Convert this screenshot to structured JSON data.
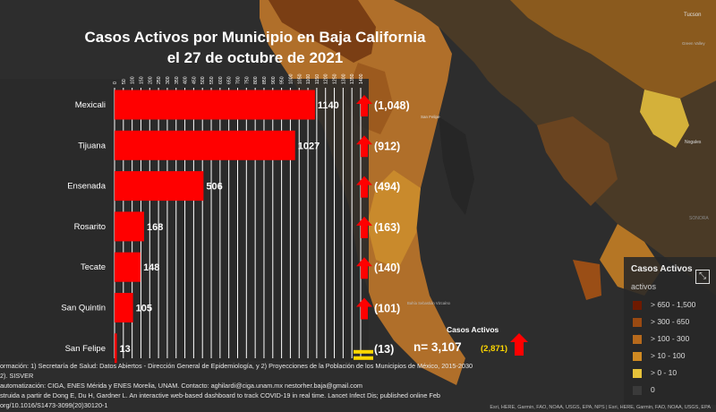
{
  "chart_data": {
    "type": "bar",
    "orientation": "horizontal",
    "title": "Casos Activos por Municipio en Baja California",
    "subtitle": "el 27 de octubre de 2021",
    "categories": [
      "Mexicali",
      "Tijuana",
      "Ensenada",
      "Rosarito",
      "Tecate",
      "San Quintin",
      "San Felipe"
    ],
    "values": [
      1140,
      1027,
      506,
      168,
      148,
      105,
      13
    ],
    "previous": [
      "(1,048)",
      "(912)",
      "(494)",
      "(163)",
      "(140)",
      "(101)",
      "(13)"
    ],
    "trend": [
      "up",
      "up",
      "up",
      "up",
      "up",
      "up",
      "equal"
    ],
    "xlim": [
      0,
      1400
    ],
    "x_ticks": [
      0,
      50,
      100,
      150,
      200,
      250,
      300,
      350,
      400,
      450,
      500,
      550,
      600,
      650,
      700,
      750,
      800,
      850,
      900,
      950,
      1000,
      1050,
      1100,
      1150,
      1200,
      1250,
      1300,
      1350,
      1400
    ],
    "x_tick_labels": [
      "0",
      "50",
      "100",
      "150",
      "200",
      "250",
      "300",
      "350",
      "400",
      "450",
      "500",
      "550",
      "600",
      "650",
      "700",
      "750",
      "800",
      "850",
      "900",
      "950",
      "1000",
      "1050",
      "1100",
      "1150",
      "1200",
      "1250",
      "1300",
      "1350",
      "1400"
    ],
    "grid": true,
    "bar_color": "#ff0000",
    "arrow_color": "#ff0000",
    "equal_color": "#ffd700"
  },
  "total": {
    "label": "Casos Activos",
    "value_text": "n= 3,107",
    "previous_text": "(2,871)",
    "trend": "up",
    "previous_color": "#ffd700"
  },
  "legend": {
    "title": "Casos Activos",
    "subtitle": "activos",
    "items": [
      {
        "label": "> 650 - 1,500",
        "color": "#6e1a00"
      },
      {
        "label": "> 300 - 650",
        "color": "#9a4a12"
      },
      {
        "label": "> 100 - 300",
        "color": "#b76a1c"
      },
      {
        "label": "> 10 - 100",
        "color": "#d08a22"
      },
      {
        "label": "> 0 - 10",
        "color": "#e6c23a"
      },
      {
        "label": "0",
        "color": "#3a3a3a"
      }
    ]
  },
  "map_labels": {
    "city1": "Tucson",
    "city2": "Green Valley",
    "city3": "Nogales",
    "city4": "San Felipe",
    "region": "SONORA",
    "bay": "Bahía Sebastián Vizcaíno"
  },
  "footer": {
    "line1": "ormación: 1) Secretaría de Salud: Datos Abiertos - Dirección General de Epidemiología, y 2) Proyecciones de la Población de los Municipios de México, 2015-2030",
    "line2": "2). SISVER",
    "line3": "automatización: CIGA, ENES Mérida y ENES Morelia, UNAM. Contacto: aghilardi@ciga.unam.mx   nestorher.baja@gmail.com",
    "line4": "struida a partir de Dong E, Du H, Gardner L. An interactive web-based dashboard to track COVID-19 in real time. Lancet Infect Dis; published online Feb",
    "line5": "org/10.1016/S1473-3099(20)30120-1",
    "attribution": "Esri, HERE, Garmin, FAO, NOAA, USGS, EPA, NPS | Esri, HERE, Garmin, FAO, NOAA, USGS, EPA"
  }
}
